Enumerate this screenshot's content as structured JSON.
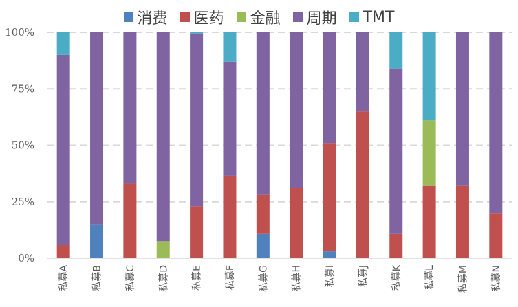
{
  "chart_data": {
    "type": "bar",
    "stacked": true,
    "percent": true,
    "categories": [
      "私募A",
      "私募B",
      "私募C",
      "私募D",
      "私募E",
      "私募F",
      "私募G",
      "私募H",
      "私募I",
      "私募J",
      "私募K",
      "私募L",
      "私募M",
      "私募N"
    ],
    "series": [
      {
        "name": "消费",
        "color": "#4f81bd",
        "values": [
          0,
          15,
          0,
          0,
          0,
          0,
          11,
          0,
          3,
          0,
          0,
          0,
          0,
          0
        ]
      },
      {
        "name": "医药",
        "color": "#c0504d",
        "values": [
          6,
          0,
          33,
          0,
          23,
          36.5,
          17,
          31,
          48,
          65,
          11,
          32,
          32,
          20
        ]
      },
      {
        "name": "金融",
        "color": "#9bbb59",
        "values": [
          0,
          0,
          0,
          7.5,
          0,
          0,
          0,
          0,
          0,
          0,
          0,
          29,
          0,
          0
        ]
      },
      {
        "name": "周期",
        "color": "#8064a2",
        "values": [
          84,
          85,
          67,
          92.5,
          76.5,
          50.5,
          72,
          69,
          49,
          35,
          73,
          0,
          68,
          80
        ]
      },
      {
        "name": "TMT",
        "color": "#4bacc6",
        "values": [
          10,
          0,
          0,
          0,
          0.5,
          13,
          0,
          0,
          0,
          0,
          16,
          39,
          0,
          0
        ]
      }
    ],
    "y_ticks": [
      "0%",
      "25%",
      "50%",
      "75%",
      "100%"
    ],
    "ylim": [
      0,
      100
    ],
    "grid": "dashed",
    "legend_position": "top"
  }
}
